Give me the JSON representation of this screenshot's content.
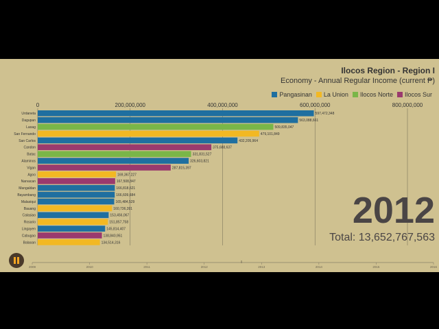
{
  "title": "Ilocos Region - Region I",
  "subtitle": "Economy - Annual Regular Income (current ₱)",
  "year": "2012",
  "total": "Total: 13,652,767,563",
  "colors": {
    "Pangasinan": "#1f6fa0",
    "La Union": "#f2b823",
    "Ilocos Norte": "#7ab648",
    "Ilocos Sur": "#9a3a6e"
  },
  "chart_data": {
    "type": "bar",
    "title": "Ilocos Region - Region I",
    "subtitle": "Economy - Annual Regular Income (current ₱)",
    "series": [
      {
        "name": "Pangasinan"
      },
      {
        "name": "La Union"
      },
      {
        "name": "Ilocos Norte"
      },
      {
        "name": "Ilocos Sur"
      }
    ],
    "categories": [
      "Urdaneta",
      "Dagupan",
      "Laoag",
      "San Fernando",
      "San Carlos",
      "Candon",
      "Batac",
      "Alaminos",
      "Vigan",
      "Agoo",
      "Narvacan",
      "Mangaldan",
      "Bayambang",
      "Malasiqui",
      "Bauang",
      "Calasiao",
      "Rosario",
      "Lingayen",
      "Cabugao",
      "Balaoan"
    ],
    "values": [
      597472348,
      563088661,
      509835047,
      479101849,
      432205964,
      375688637,
      331831527,
      326603821,
      287815397,
      169367227,
      167508847,
      166818621,
      166609684,
      165484529,
      160736391,
      153456067,
      151857758,
      145814407,
      138840951,
      134514316
    ],
    "value_labels": [
      "597,472,348",
      "563,088,661",
      "509,835,047",
      "479,101,849",
      "432,205,964",
      "375,688,637",
      "331,831,527",
      "326,603,821",
      "287,815,397",
      "169,367,227",
      "167,508,847",
      "166,818,621",
      "166,609,684",
      "165,484,529",
      "160,736,391",
      "153,456,067",
      "151,857,758",
      "145,814,407",
      "138,840,951",
      "134,514,316"
    ],
    "provinces": [
      "Pangasinan",
      "Pangasinan",
      "Ilocos Norte",
      "La Union",
      "Pangasinan",
      "Ilocos Sur",
      "Ilocos Norte",
      "Pangasinan",
      "Ilocos Sur",
      "La Union",
      "Ilocos Sur",
      "Pangasinan",
      "Pangasinan",
      "Pangasinan",
      "La Union",
      "Pangasinan",
      "La Union",
      "Pangasinan",
      "Ilocos Sur",
      "La Union"
    ],
    "xaxis": {
      "ticks": [
        0,
        200000000,
        400000000,
        600000000,
        800000000
      ],
      "tick_labels": [
        "0",
        "200,000,000",
        "400,000,000",
        "600,000,000",
        "800,000,000"
      ],
      "lim": [
        0,
        800000000
      ]
    },
    "timeline": {
      "years": [
        "2009",
        "2010",
        "2011",
        "2012",
        "2013",
        "2014",
        "2015",
        "2016"
      ],
      "current": "2012"
    },
    "grid": true,
    "legend": "top-right"
  }
}
